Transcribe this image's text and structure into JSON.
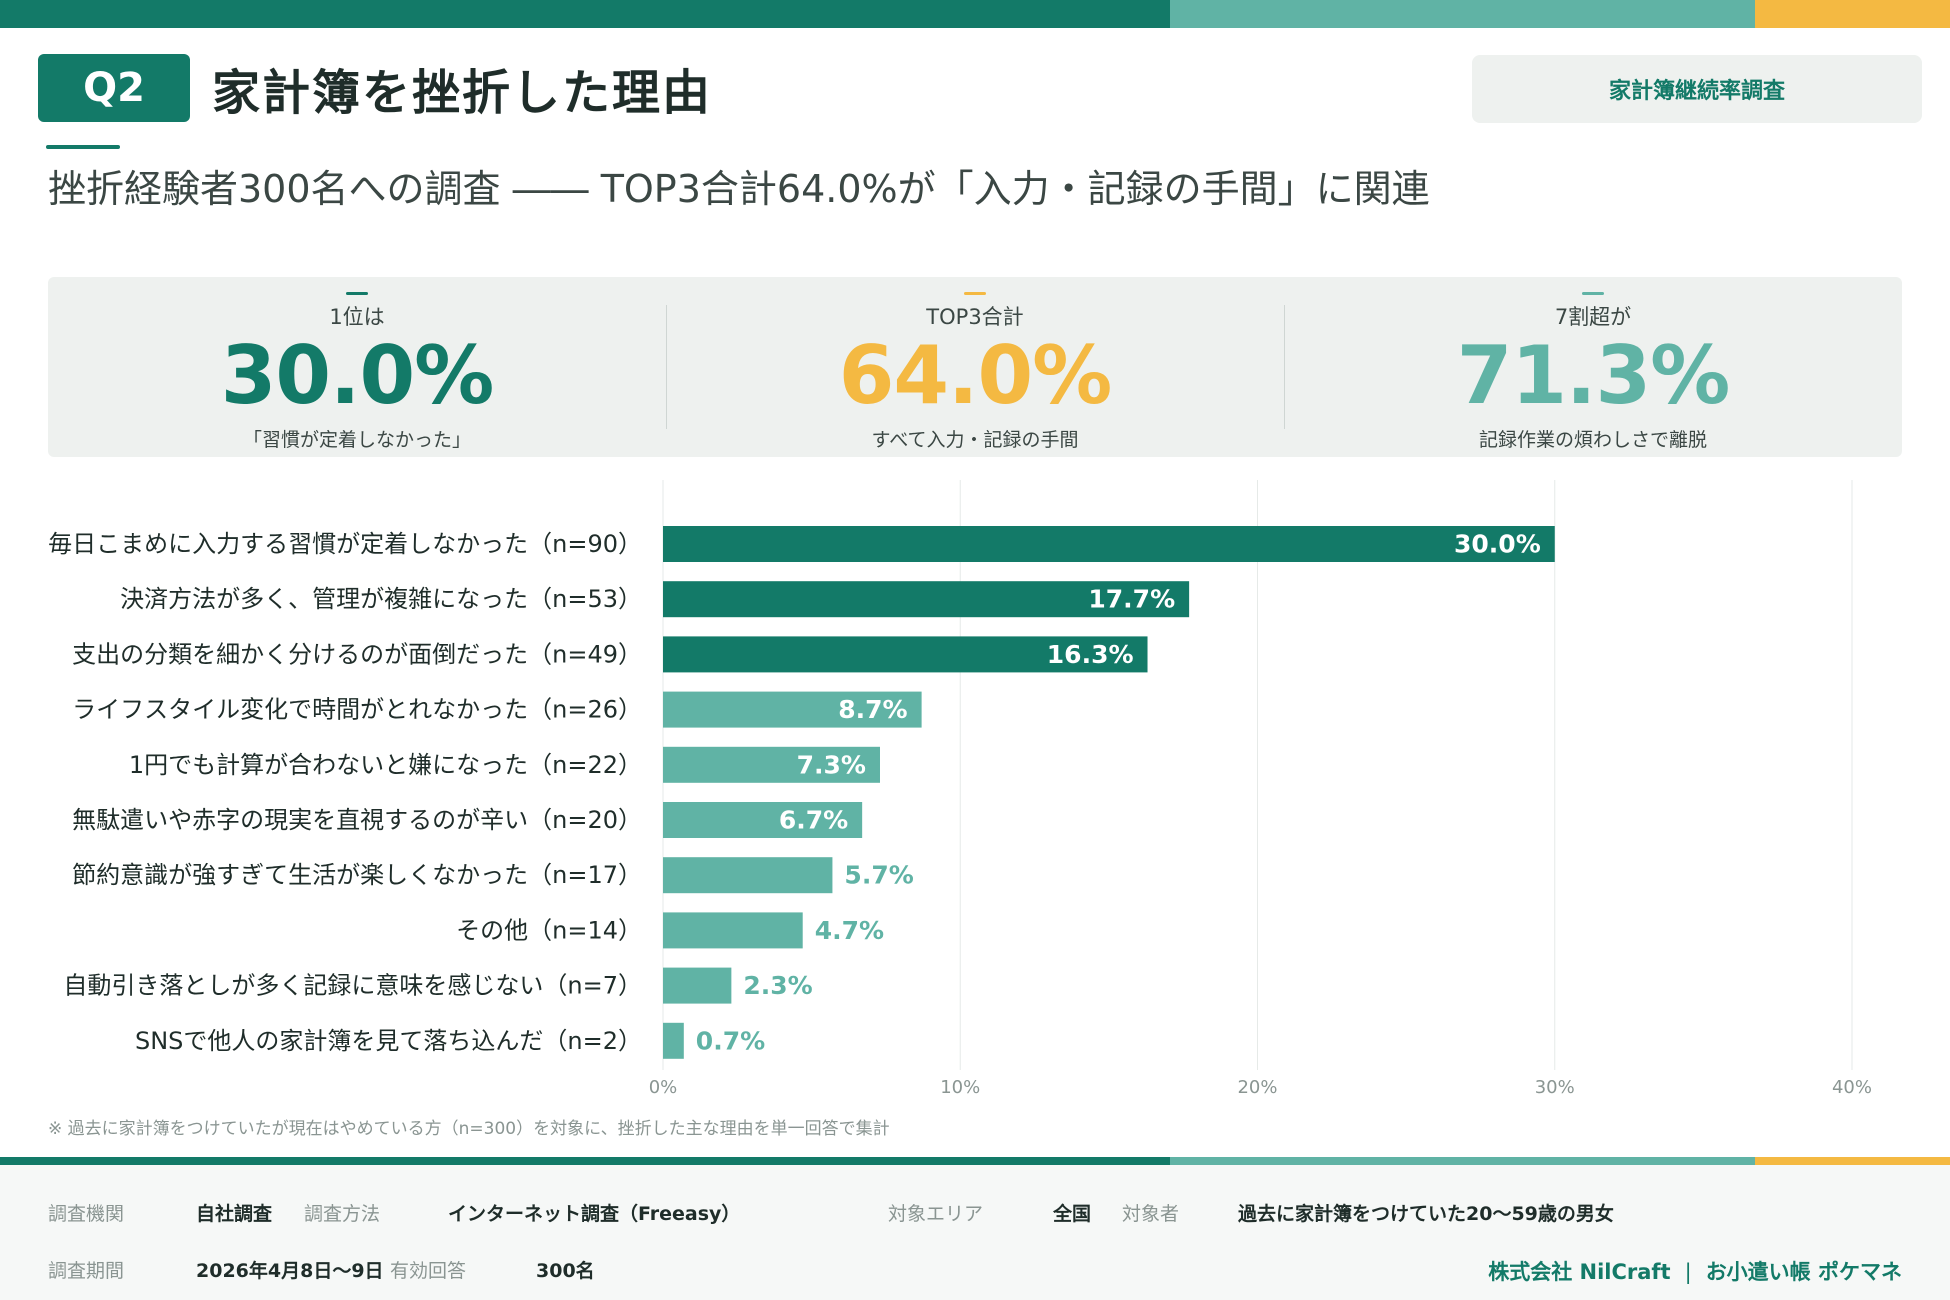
{
  "header": {
    "badge": "Q2",
    "title": "家計簿を挫折した理由",
    "tag": "家計簿継続率調査",
    "subtitle": "挫折経験者300名への調査 ―― TOP3合計64.0%が「入力・記録の手間」に関連"
  },
  "colors": {
    "primary": "#137a68",
    "secondary": "#60b3a5",
    "accent": "#f4b942"
  },
  "kpis": [
    {
      "label": "1位は",
      "value": "30.0%",
      "caption": "「習慣が定着しなかった」",
      "color": "#137a68"
    },
    {
      "label": "TOP3合計",
      "value": "64.0%",
      "caption": "すべて入力・記録の手間",
      "color": "#f4b942"
    },
    {
      "label": "7割超が",
      "value": "71.3%",
      "caption": "記録作業の煩わしさで離脱",
      "color": "#60b3a5"
    }
  ],
  "chart_data": {
    "type": "bar",
    "orientation": "horizontal",
    "categories": [
      "毎日こまめに入力する習慣が定着しなかった（n=90）",
      "決済方法が多く、管理が複雑になった（n=53）",
      "支出の分類を細かく分けるのが面倒だった（n=49）",
      "ライフスタイル変化で時間がとれなかった（n=26）",
      "1円でも計算が合わないと嫌になった（n=22）",
      "無駄遣いや赤字の現実を直視するのが辛い（n=20）",
      "節約意識が強すぎて生活が楽しくなかった（n=17）",
      "その他（n=14）",
      "自動引き落としが多く記録に意味を感じない（n=7）",
      "SNSで他人の家計簿を見て落ち込んだ（n=2）"
    ],
    "values": [
      30.0,
      17.7,
      16.3,
      8.7,
      7.3,
      6.7,
      5.7,
      4.7,
      2.3,
      0.7
    ],
    "value_labels": [
      "30.0%",
      "17.7%",
      "16.3%",
      "8.7%",
      "7.3%",
      "6.7%",
      "5.7%",
      "4.7%",
      "2.3%",
      "0.7%"
    ],
    "highlight_top": 3,
    "xlim": [
      0,
      40
    ],
    "xticks": [
      0,
      10,
      20,
      30,
      40
    ],
    "xtick_labels": [
      "0%",
      "10%",
      "20%",
      "30%",
      "40%"
    ],
    "grid": true
  },
  "footnote": "※ 過去に家計簿をつけていたが現在はやめている方（n=300）を対象に、挫折した主な理由を単一回答で集計",
  "footer": {
    "org_label": "調査機関",
    "org_value": "自社調査",
    "method_label": "調査方法",
    "method_value": "インターネット調査（Freeasy）",
    "area_label": "対象エリア",
    "area_value": "全国",
    "target_label": "対象者",
    "target_value": "過去に家計簿をつけていた20〜59歳の男女",
    "period_label": "調査期間",
    "period_value": "2026年4月8日〜9日",
    "valid_label": "有効回答",
    "valid_value": "300名",
    "company": "株式会社 NilCraft",
    "separator": "|",
    "product": "お小遣い帳 ポケマネ"
  }
}
